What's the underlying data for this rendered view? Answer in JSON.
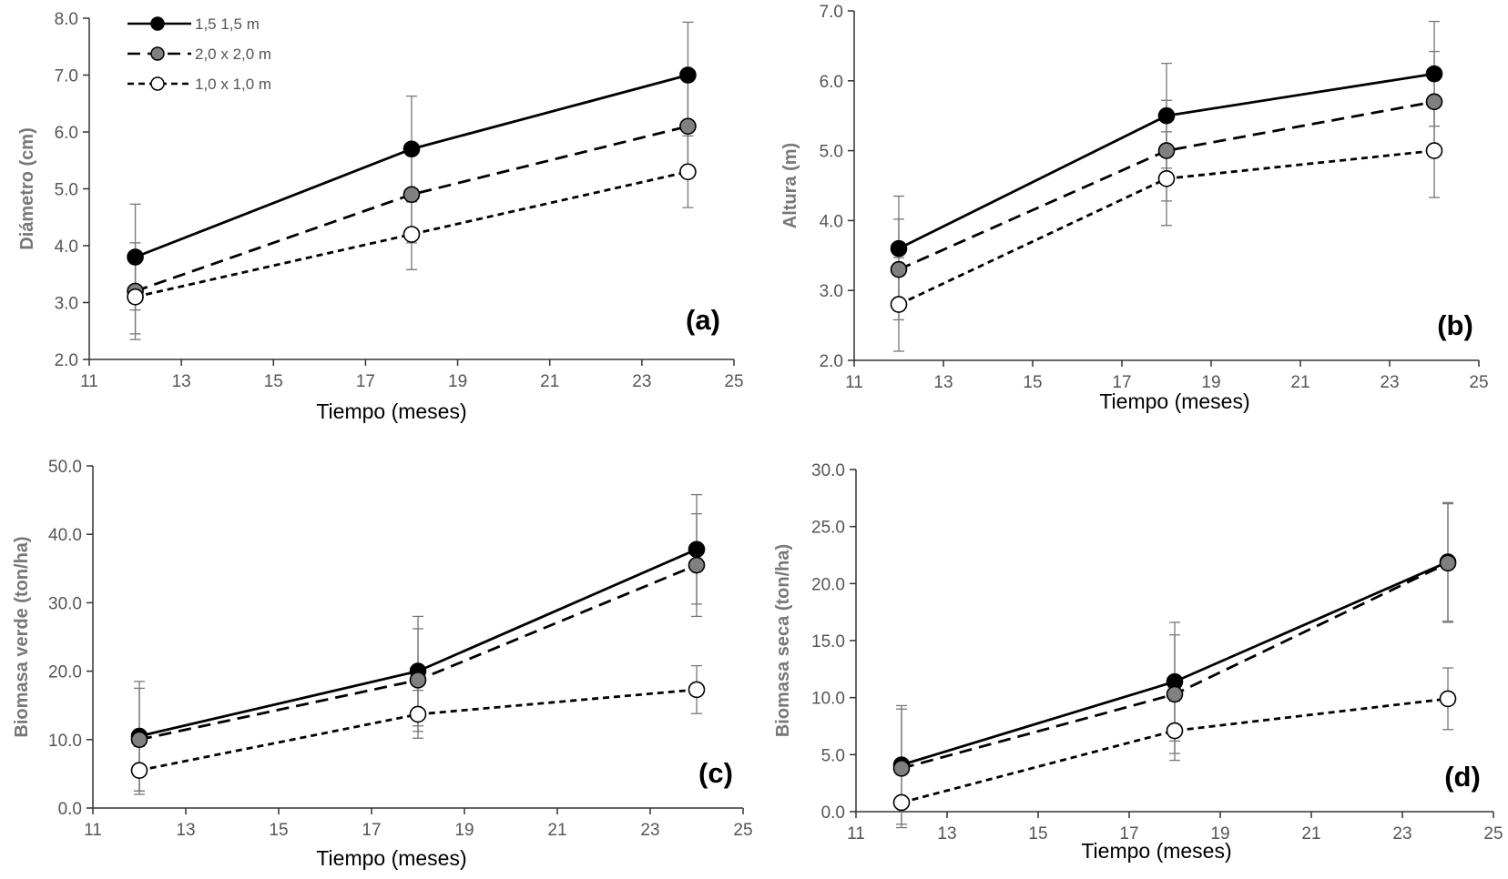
{
  "legend": [
    {
      "label": "1,5 1,5 m",
      "color": "#000000",
      "fill": "#000000",
      "dash": "none"
    },
    {
      "label": "2,0 x 2,0 m",
      "color": "#000000",
      "fill": "#808080",
      "dash": "14 8"
    },
    {
      "label": "1,0 x 1,0 m",
      "color": "#000000",
      "fill": "#ffffff",
      "dash": "7 5"
    }
  ],
  "chart_data": [
    {
      "type": "line",
      "panel_label": "(a)",
      "xlabel": "Tiempo (meses)",
      "ylabel": "Diámetro (cm)",
      "xlim": [
        11,
        25
      ],
      "ylim": [
        2.0,
        8.0
      ],
      "xticks": [
        "11",
        "13",
        "15",
        "17",
        "19",
        "21",
        "23",
        "25"
      ],
      "yticks": [
        "2.0",
        "3.0",
        "4.0",
        "5.0",
        "6.0",
        "7.0",
        "8.0"
      ],
      "x": [
        12,
        18,
        24
      ],
      "series": [
        {
          "name": "1,5 1,5 m",
          "values": [
            3.8,
            5.7,
            7.0
          ],
          "err": [
            0.93,
            0.93,
            0.93
          ]
        },
        {
          "name": "2,0 x 2,0 m",
          "values": [
            3.2,
            4.9,
            6.1
          ],
          "err": [
            0.85,
            0.85,
            0.85
          ]
        },
        {
          "name": "1,0 x 1,0 m",
          "values": [
            3.1,
            4.2,
            5.3
          ],
          "err": [
            0.65,
            0.62,
            0.63
          ]
        }
      ],
      "grid": false,
      "legend_position": "top-left"
    },
    {
      "type": "line",
      "panel_label": "(b)",
      "xlabel": "Tiempo (meses)",
      "ylabel": "Altura (m)",
      "xlim": [
        11,
        25
      ],
      "ylim": [
        2.0,
        7.0
      ],
      "xticks": [
        "11",
        "13",
        "15",
        "17",
        "19",
        "21",
        "23",
        "25"
      ],
      "yticks": [
        "2.0",
        "3.0",
        "4.0",
        "5.0",
        "6.0",
        "7.0"
      ],
      "x": [
        12,
        18,
        24
      ],
      "series": [
        {
          "name": "1,5 1,5 m",
          "values": [
            3.6,
            5.5,
            6.1
          ],
          "err": [
            0.75,
            0.75,
            0.75
          ]
        },
        {
          "name": "2,0 x 2,0 m",
          "values": [
            3.3,
            5.0,
            5.7
          ],
          "err": [
            0.72,
            0.72,
            0.72
          ]
        },
        {
          "name": "1,0 x 1,0 m",
          "values": [
            2.8,
            4.6,
            5.0
          ],
          "err": [
            0.67,
            0.67,
            0.67
          ]
        }
      ],
      "grid": false
    },
    {
      "type": "line",
      "panel_label": "(c)",
      "xlabel": "Tiempo (meses)",
      "ylabel": "Biomasa verde  (ton/ha)",
      "xlim": [
        11,
        25
      ],
      "ylim": [
        0.0,
        50.0
      ],
      "xticks": [
        "11",
        "13",
        "15",
        "17",
        "19",
        "21",
        "23",
        "25"
      ],
      "yticks": [
        "0.0",
        "10.0",
        "20.0",
        "30.0",
        "40.0",
        "50.0"
      ],
      "x": [
        12,
        18,
        24
      ],
      "series": [
        {
          "name": "1,5 1,5 m",
          "values": [
            10.5,
            20.0,
            37.8
          ],
          "err": [
            8.0,
            8.0,
            8.0
          ]
        },
        {
          "name": "2,0 x 2,0 m",
          "values": [
            10.0,
            18.7,
            35.5
          ],
          "err": [
            7.5,
            7.5,
            7.5
          ]
        },
        {
          "name": "1,0 x 1,0 m",
          "values": [
            5.5,
            13.7,
            17.3
          ],
          "err": [
            3.5,
            3.5,
            3.5
          ]
        }
      ],
      "grid": false
    },
    {
      "type": "line",
      "panel_label": "(d)",
      "xlabel": "Tiempo (meses)",
      "ylabel": "Biomasa seca (ton/ha)",
      "xlim": [
        11,
        25
      ],
      "ylim": [
        0.0,
        30.0
      ],
      "xticks": [
        "11",
        "13",
        "15",
        "17",
        "19",
        "21",
        "23",
        "25"
      ],
      "yticks": [
        "0.0",
        "5.0",
        "10.0",
        "15.0",
        "20.0",
        "25.0",
        "30.0"
      ],
      "x": [
        12,
        18,
        24
      ],
      "series": [
        {
          "name": "1,5 1,5 m",
          "values": [
            4.1,
            11.4,
            21.9
          ],
          "err": [
            5.2,
            5.2,
            5.2
          ]
        },
        {
          "name": "2,0 x 2,0 m",
          "values": [
            3.8,
            10.3,
            21.8
          ],
          "err": [
            5.2,
            5.2,
            5.2
          ]
        },
        {
          "name": "1,0 x 1,0 m",
          "values": [
            0.8,
            7.1,
            9.9
          ],
          "err": [
            0.5,
            2.6,
            2.7
          ]
        }
      ],
      "grid": false
    }
  ]
}
